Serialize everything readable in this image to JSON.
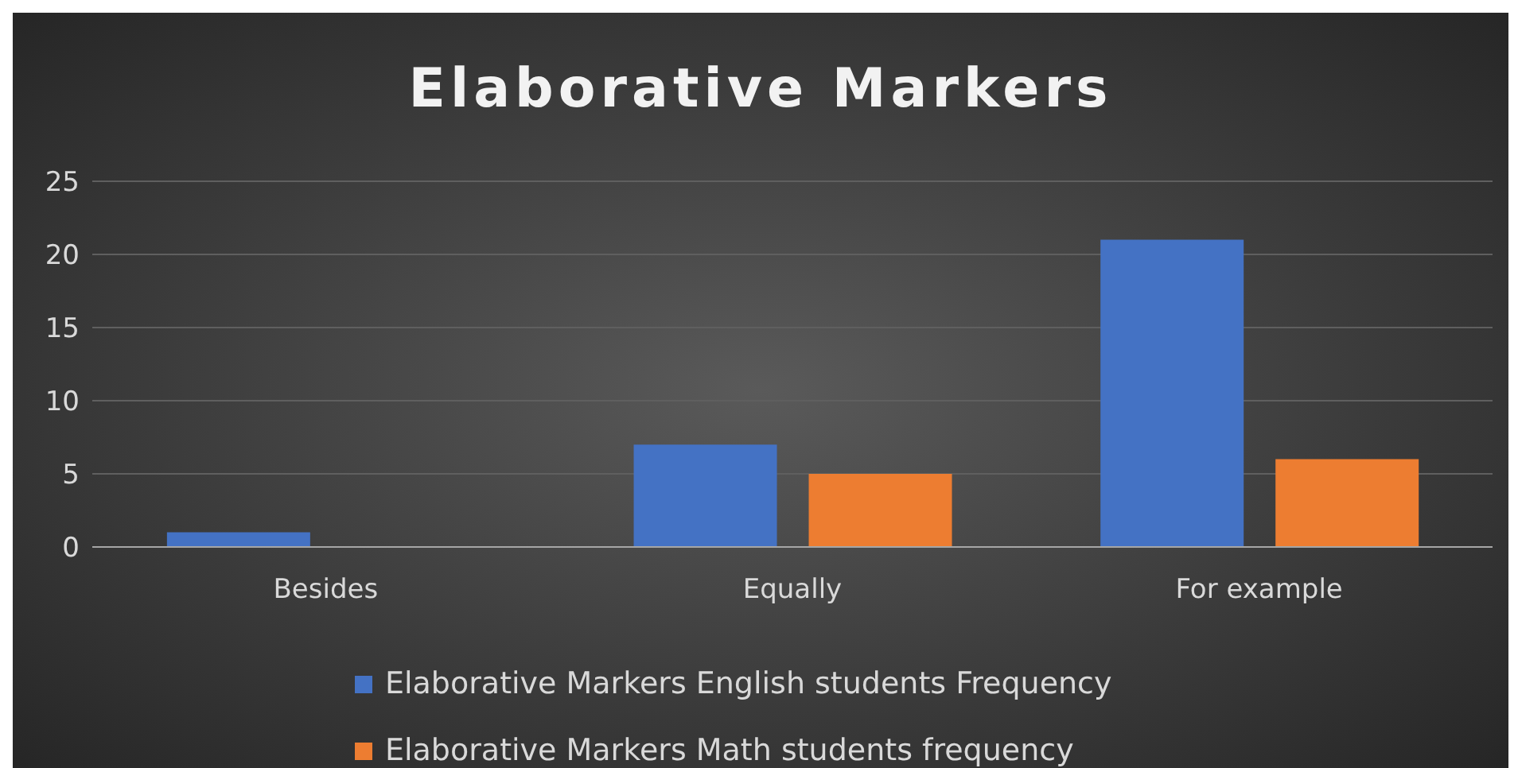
{
  "chart_data": {
    "type": "bar",
    "title": "Elaborative Markers",
    "categories": [
      "Besides",
      "Equally",
      "For example"
    ],
    "series": [
      {
        "name": "Elaborative Markers English students Frequency",
        "color": "#4472c4",
        "values": [
          1,
          7,
          21
        ]
      },
      {
        "name": "Elaborative Markers Math students frequency",
        "color": "#ed7d31",
        "values": [
          0,
          5,
          6
        ]
      }
    ],
    "ylim": [
      0,
      25
    ],
    "yticks": [
      0,
      5,
      10,
      15,
      20,
      25
    ],
    "grid": "y",
    "legend": "bottom"
  }
}
